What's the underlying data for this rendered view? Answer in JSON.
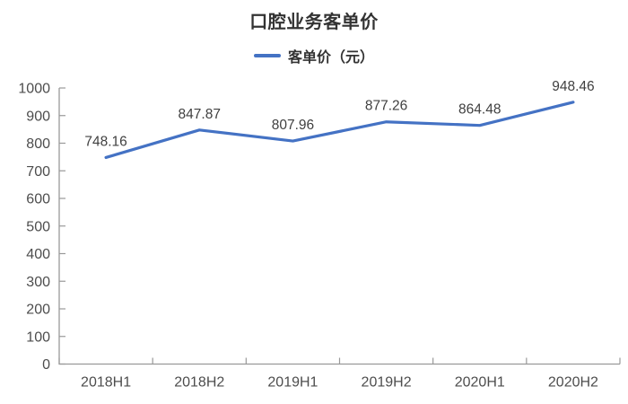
{
  "page": {
    "background": "#ffffff"
  },
  "header": {
    "title": "口腔业务客单价"
  },
  "legend": {
    "items": [
      {
        "label": "客单价（元）",
        "marker": "line-icon",
        "color": "#4472C4"
      }
    ]
  },
  "chart_data": {
    "type": "line",
    "title": "口腔业务客单价",
    "categories": [
      "2018H1",
      "2018H2",
      "2019H1",
      "2019H2",
      "2020H1",
      "2020H2"
    ],
    "series": [
      {
        "name": "客单价（元）",
        "color": "#4472C4",
        "values": [
          748.16,
          847.87,
          807.96,
          877.26,
          864.48,
          948.46
        ]
      }
    ],
    "data_labels": [
      "748.16",
      "847.87",
      "807.96",
      "877.26",
      "864.48",
      "948.46"
    ],
    "xlabel": "",
    "ylabel": "",
    "ylim": [
      0,
      1000
    ],
    "ytick_step": 100,
    "yticks": [
      0,
      100,
      200,
      300,
      400,
      500,
      600,
      700,
      800,
      900,
      1000
    ],
    "grid": false,
    "legend_position": "top",
    "axis_color": "#999999",
    "tick_label_color": "#4d4d4d",
    "data_label_color": "#404040"
  }
}
